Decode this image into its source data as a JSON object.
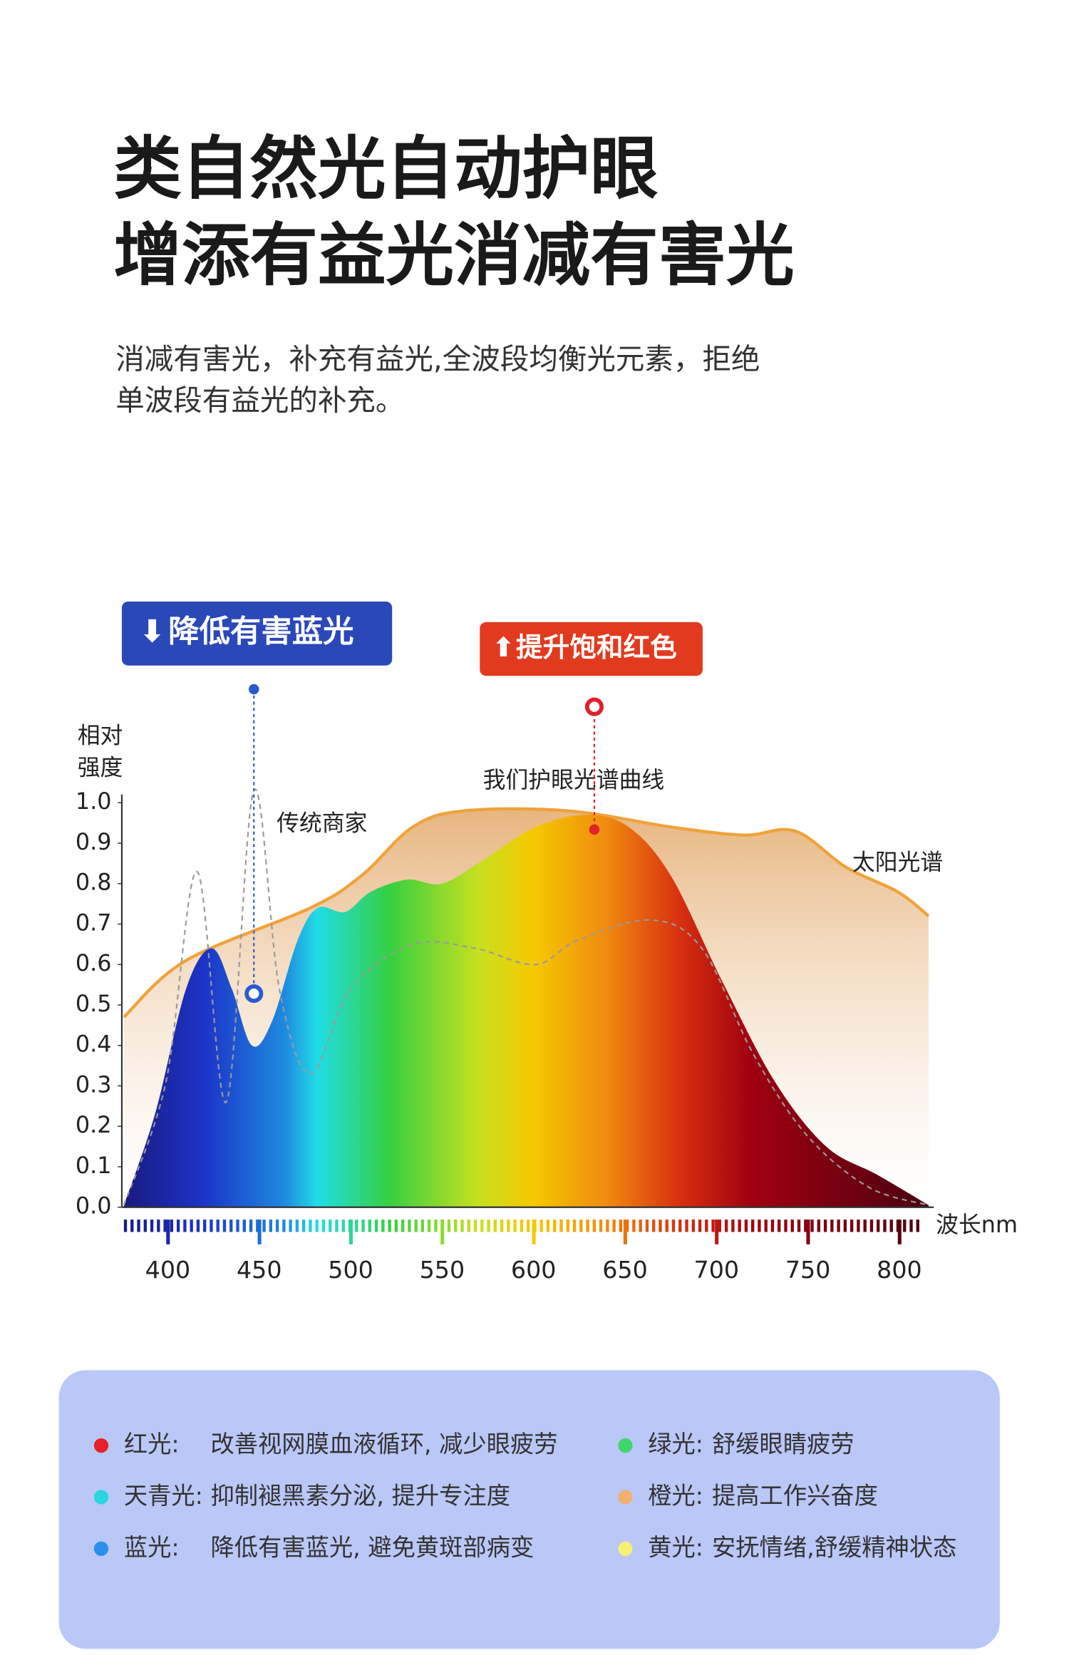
{
  "header": {
    "title_lines": [
      "类自然光自动护眼",
      "增添有益光消减有害光"
    ],
    "subtitle_lines": [
      "消减有害光，补充有益光,全波段均衡光元素，拒绝",
      "单波段有益光的补充。"
    ]
  },
  "chart_data": {
    "type": "area",
    "ylabel_lines": [
      "相对",
      "强度"
    ],
    "xlabel": "波长nm",
    "xlim": [
      376,
      816
    ],
    "ylim": [
      0,
      1
    ],
    "xticks": [
      400,
      450,
      500,
      550,
      600,
      650,
      700,
      750,
      800
    ],
    "yticks": [
      {
        "value": 0,
        "label": "0.0"
      },
      {
        "value": 0.1,
        "label": "0.1"
      },
      {
        "value": 0.2,
        "label": "0.2"
      },
      {
        "value": 0.3,
        "label": "0.3"
      },
      {
        "value": 0.4,
        "label": "0.4"
      },
      {
        "value": 0.5,
        "label": "0.5"
      },
      {
        "value": 0.6,
        "label": "0.6"
      },
      {
        "value": 0.7,
        "label": "0.7"
      },
      {
        "value": 0.8,
        "label": "0.8"
      },
      {
        "value": 0.9,
        "label": "0.9"
      },
      {
        "value": 1.0,
        "label": "1.0"
      }
    ],
    "series": [
      {
        "name": "太阳光谱",
        "color": "#f0a23a",
        "x": [
          376,
          410,
          478,
          506,
          534,
          562,
          619,
          675,
          715,
          743,
          771,
          799,
          816
        ],
        "values": [
          0.47,
          0.61,
          0.74,
          0.82,
          0.94,
          0.98,
          0.98,
          0.94,
          0.92,
          0.93,
          0.84,
          0.78,
          0.72
        ]
      },
      {
        "name": "我们护眼光谱曲线",
        "color": "spectrum",
        "x": [
          376,
          393,
          410,
          424,
          435,
          446,
          457,
          471,
          482,
          497,
          511,
          531,
          550,
          573,
          601,
          629,
          652,
          675,
          703,
          732,
          760,
          788,
          816
        ],
        "values": [
          0.005,
          0.23,
          0.54,
          0.64,
          0.54,
          0.4,
          0.46,
          0.66,
          0.74,
          0.73,
          0.78,
          0.81,
          0.8,
          0.86,
          0.94,
          0.97,
          0.94,
          0.82,
          0.56,
          0.31,
          0.15,
          0.08,
          0.005
        ]
      },
      {
        "name": "传统商家",
        "color": "#9a9a9a",
        "x": [
          376,
          399,
          416,
          432,
          447,
          461,
          478,
          500,
          534,
          568,
          601,
          624,
          664,
          692,
          720,
          749,
          783,
          816
        ],
        "values": [
          0.005,
          0.31,
          0.83,
          0.26,
          1.03,
          0.54,
          0.33,
          0.54,
          0.65,
          0.64,
          0.6,
          0.66,
          0.71,
          0.64,
          0.38,
          0.18,
          0.05,
          0.005
        ]
      }
    ],
    "annotations": [
      "降低有害蓝光",
      "提升饱和红色"
    ]
  },
  "legend": {
    "items": [
      {
        "label": "红光:",
        "text": "改善视网膜血液循环, 减少眼疲劳",
        "color": "#e8202a"
      },
      {
        "label": "绿光:",
        "text": "舒缓眼睛疲劳",
        "color": "#3ed66a"
      },
      {
        "label": "天青光:",
        "text": "抑制褪黑素分泌, 提升专注度",
        "color": "#2ad6e0"
      },
      {
        "label": "橙光:",
        "text": "提高工作兴奋度",
        "color": "#f0b070"
      },
      {
        "label": "蓝光:",
        "text": "降低有害蓝光, 避免黄斑部病变",
        "color": "#2a8ef0"
      },
      {
        "label": "黄光:",
        "text": "安抚情绪,舒缓精神状态",
        "color": "#f6f070"
      }
    ]
  }
}
